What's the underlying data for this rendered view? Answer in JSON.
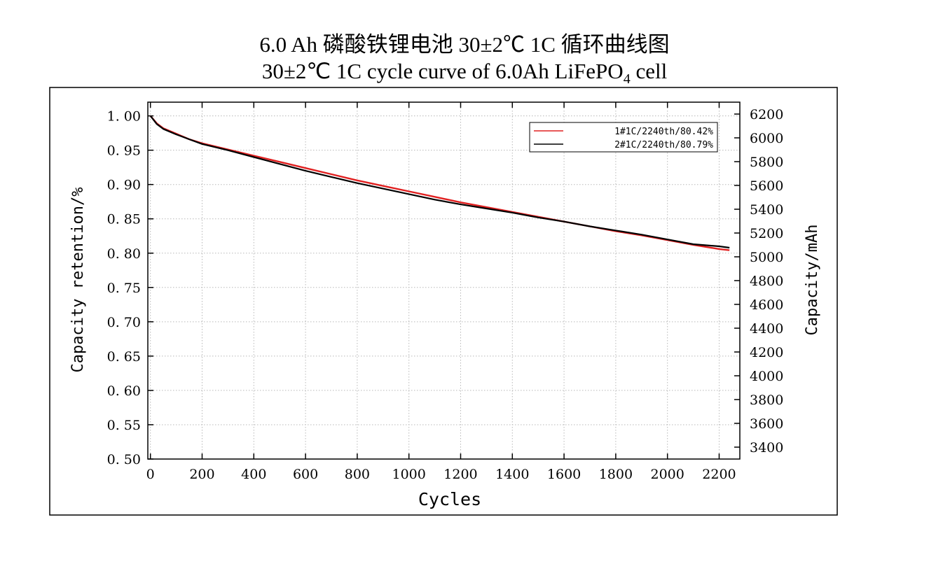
{
  "title_cn": "6.0 Ah 磷酸铁锂电池 30±2℃ 1C 循环曲线图",
  "title_en": "30±2℃ 1C cycle curve of 6.0Ah LiFePO4 cell",
  "chart_data": {
    "type": "line",
    "title": "30±2℃ 1C cycle curve of 6.0Ah LiFePO4 cell",
    "xlabel": "Cycles",
    "ylabel": "Capacity retention/%",
    "y2label": "Capacity/mAh",
    "xlim": [
      -10,
      2280
    ],
    "ylim": [
      0.5,
      1.02
    ],
    "y2lim": [
      3300,
      6300
    ],
    "xticks": [
      "0",
      "200",
      "400",
      "600",
      "800",
      "1000",
      "1200",
      "1400",
      "1600",
      "1800",
      "2000",
      "2200"
    ],
    "yticks": [
      "0.50",
      "0.55",
      "0.60",
      "0.65",
      "0.70",
      "0.75",
      "0.80",
      "0.85",
      "0.90",
      "0.95",
      "1.00"
    ],
    "y2ticks": [
      "3400",
      "3600",
      "3800",
      "4000",
      "4200",
      "4400",
      "4600",
      "4800",
      "5000",
      "5200",
      "5400",
      "5600",
      "5800",
      "6000",
      "6200"
    ],
    "grid": true,
    "legend_position": "top-right",
    "colors": {
      "series1": "#e02020",
      "series2": "#000000"
    },
    "series": [
      {
        "name": "1#1C/2240th/80.42%",
        "x": [
          0,
          25,
          50,
          100,
          150,
          200,
          300,
          400,
          500,
          600,
          700,
          800,
          900,
          1000,
          1100,
          1200,
          1300,
          1400,
          1500,
          1600,
          1700,
          1800,
          1900,
          2000,
          2100,
          2200,
          2240
        ],
        "y": [
          1.0,
          0.989,
          0.982,
          0.974,
          0.966,
          0.96,
          0.951,
          0.942,
          0.933,
          0.924,
          0.915,
          0.906,
          0.898,
          0.89,
          0.882,
          0.874,
          0.867,
          0.86,
          0.853,
          0.846,
          0.839,
          0.832,
          0.826,
          0.819,
          0.812,
          0.806,
          0.8042
        ]
      },
      {
        "name": "2#1C/2240th/80.79%",
        "x": [
          0,
          25,
          50,
          100,
          150,
          200,
          300,
          400,
          500,
          600,
          700,
          800,
          900,
          1000,
          1100,
          1200,
          1300,
          1400,
          1500,
          1600,
          1700,
          1800,
          1900,
          2000,
          2100,
          2200,
          2240
        ],
        "y": [
          1.0,
          0.988,
          0.981,
          0.973,
          0.966,
          0.959,
          0.95,
          0.94,
          0.93,
          0.92,
          0.911,
          0.902,
          0.894,
          0.886,
          0.878,
          0.871,
          0.865,
          0.859,
          0.852,
          0.846,
          0.839,
          0.833,
          0.827,
          0.82,
          0.813,
          0.81,
          0.8079
        ]
      }
    ]
  }
}
